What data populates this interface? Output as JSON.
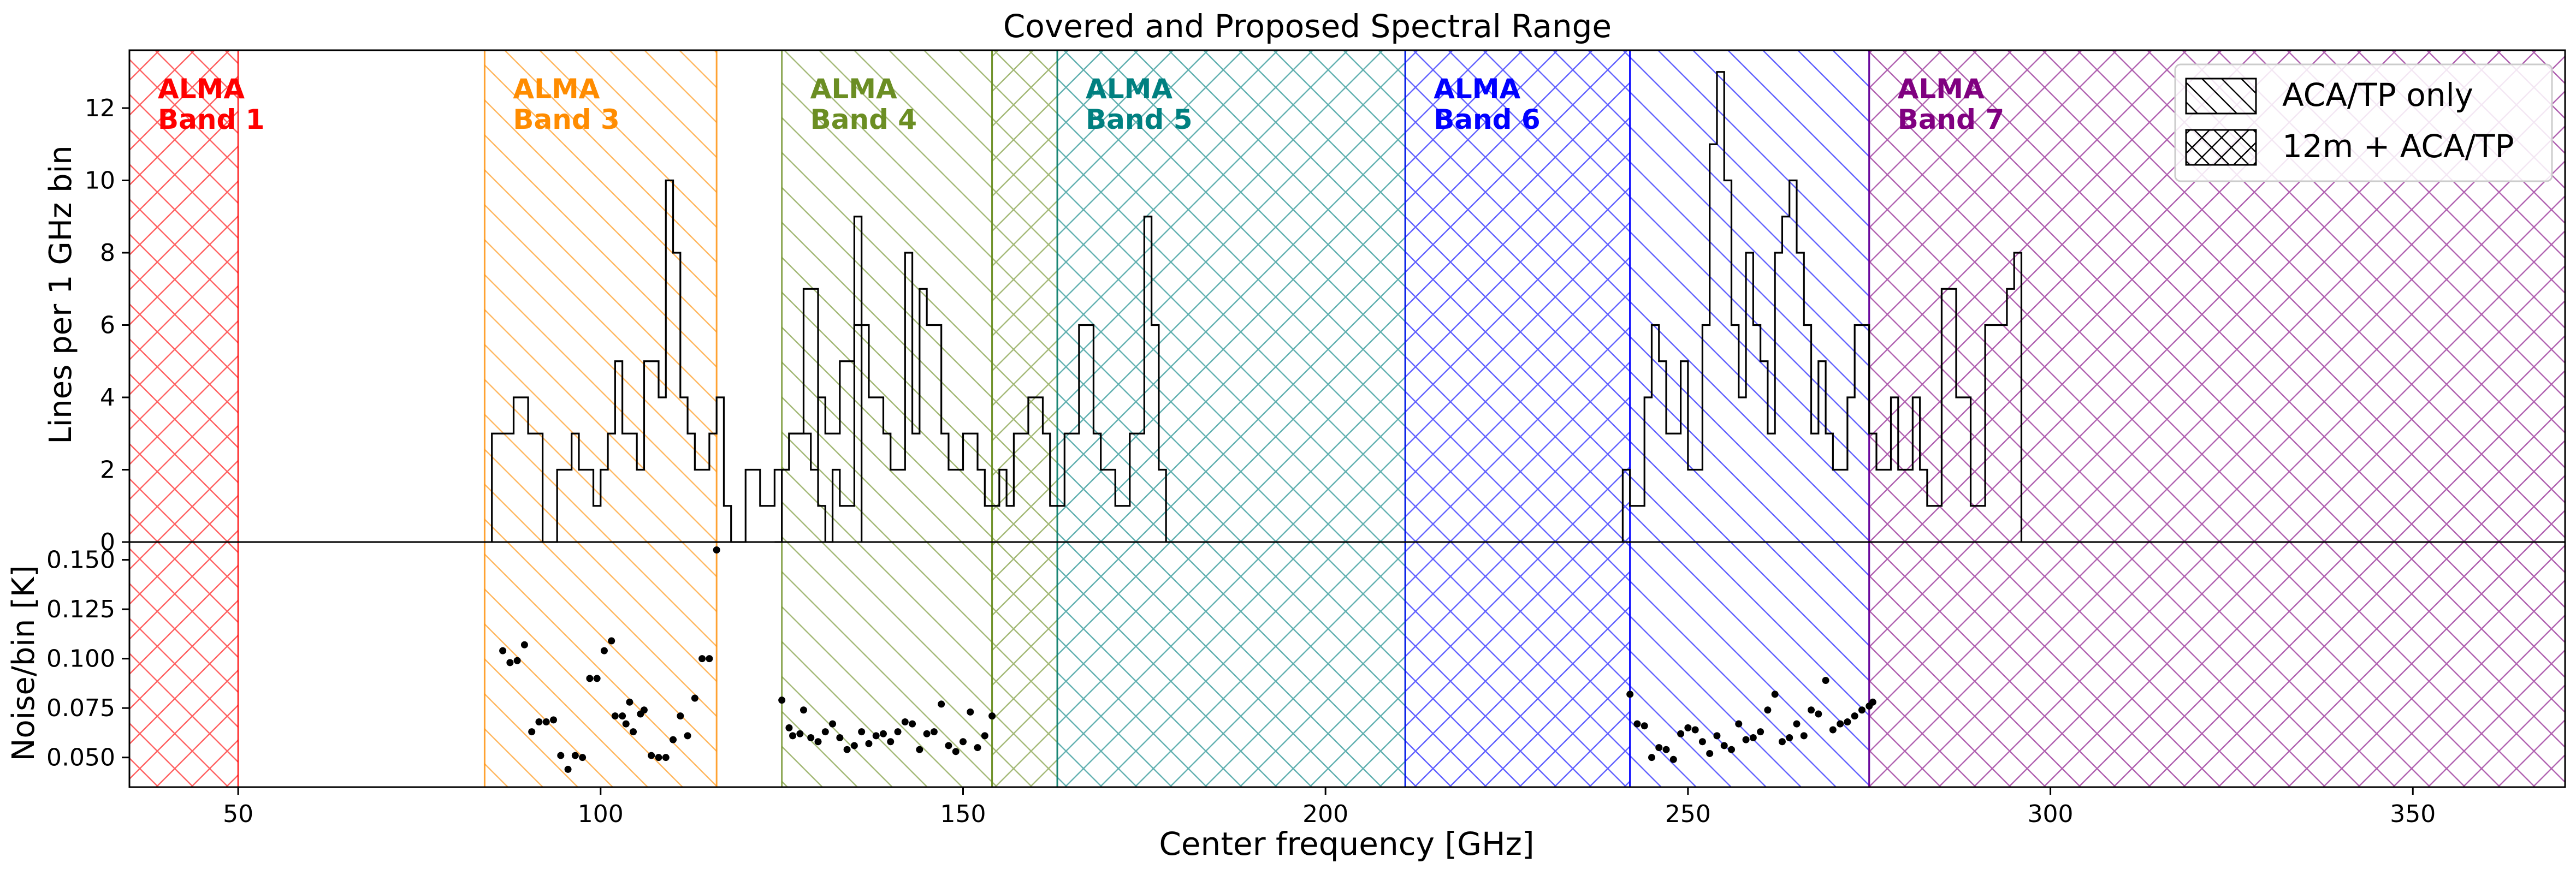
{
  "chart_data": {
    "title": "Covered and Proposed Spectral Range",
    "xlabel": "Center frequency [GHz]",
    "xlim": [
      35,
      371
    ],
    "xticks": [
      50,
      100,
      150,
      200,
      250,
      300,
      350
    ],
    "top_panel": {
      "type": "histogram-step",
      "ylabel": "Lines per 1 GHz bin",
      "ylim": [
        0,
        13.6
      ],
      "yticks": [
        0,
        2,
        4,
        6,
        8,
        10,
        12
      ],
      "bin_width": 1,
      "segments": [
        {
          "start": 85,
          "values": [
            3,
            3,
            3,
            4,
            4,
            3,
            3,
            0,
            0,
            2,
            2,
            3,
            2,
            2,
            1,
            2,
            3,
            5,
            3,
            3,
            2,
            5,
            5,
            4,
            10,
            8,
            4,
            3,
            2,
            2,
            3,
            4,
            1,
            0,
            0,
            2,
            2,
            1,
            1,
            2,
            2,
            3,
            3,
            7,
            7,
            1,
            0,
            2,
            1,
            1,
            6
          ]
        },
        {
          "start": 124,
          "values": [
            0,
            2,
            3,
            3,
            3,
            2,
            4,
            3,
            3,
            5,
            5,
            9,
            6,
            4,
            4,
            3,
            2,
            2,
            8,
            3,
            7,
            6,
            6,
            3,
            2,
            2,
            3,
            3,
            2,
            1,
            1,
            2,
            1,
            3,
            3,
            4,
            4,
            3,
            1,
            1,
            3,
            3,
            6,
            6,
            3,
            2,
            2,
            1,
            1,
            3,
            3,
            9,
            6,
            2
          ]
        },
        {
          "start": 241,
          "values": [
            2,
            1,
            1,
            4,
            6,
            5,
            3,
            3,
            5,
            2,
            2,
            6,
            11,
            13,
            10,
            6,
            4,
            8,
            6,
            5,
            3,
            8,
            9,
            10,
            8,
            6,
            3,
            5,
            3,
            2,
            2,
            4,
            6,
            6,
            3,
            2,
            2,
            4,
            2,
            2,
            4,
            2,
            1,
            1,
            7,
            7,
            4,
            4,
            1,
            1,
            6,
            6,
            6,
            7,
            8
          ]
        }
      ]
    },
    "bottom_panel": {
      "type": "scatter",
      "ylabel": "Noise/bin [K]",
      "ylim": [
        0.035,
        0.159
      ],
      "yticks": [
        0.05,
        0.075,
        0.1,
        0.125,
        0.15
      ],
      "ytick_labels": [
        "0.050",
        "0.075",
        "0.100",
        "0.125",
        "0.150"
      ],
      "points": [
        [
          86.5,
          0.104
        ],
        [
          87.5,
          0.098
        ],
        [
          88.5,
          0.099
        ],
        [
          89.5,
          0.107
        ],
        [
          90.5,
          0.063
        ],
        [
          91.5,
          0.068
        ],
        [
          92.5,
          0.068
        ],
        [
          93.5,
          0.069
        ],
        [
          94.5,
          0.051
        ],
        [
          95.5,
          0.044
        ],
        [
          96.5,
          0.051
        ],
        [
          97.5,
          0.05
        ],
        [
          98.5,
          0.09
        ],
        [
          99.5,
          0.09
        ],
        [
          100.5,
          0.104
        ],
        [
          101.5,
          0.109
        ],
        [
          102,
          0.071
        ],
        [
          103,
          0.071
        ],
        [
          103.5,
          0.067
        ],
        [
          104,
          0.078
        ],
        [
          104.5,
          0.063
        ],
        [
          105.5,
          0.072
        ],
        [
          106,
          0.074
        ],
        [
          107,
          0.051
        ],
        [
          108,
          0.05
        ],
        [
          109,
          0.05
        ],
        [
          110,
          0.059
        ],
        [
          111,
          0.071
        ],
        [
          112,
          0.061
        ],
        [
          113,
          0.08
        ],
        [
          114,
          0.1
        ],
        [
          115,
          0.1
        ],
        [
          116,
          0.155
        ],
        [
          125,
          0.079
        ],
        [
          126,
          0.065
        ],
        [
          126.5,
          0.061
        ],
        [
          127.5,
          0.062
        ],
        [
          128,
          0.074
        ],
        [
          129,
          0.06
        ],
        [
          130,
          0.058
        ],
        [
          131,
          0.063
        ],
        [
          132,
          0.067
        ],
        [
          133,
          0.06
        ],
        [
          134,
          0.054
        ],
        [
          135,
          0.056
        ],
        [
          136,
          0.063
        ],
        [
          137,
          0.057
        ],
        [
          138,
          0.061
        ],
        [
          139,
          0.062
        ],
        [
          140,
          0.058
        ],
        [
          141,
          0.063
        ],
        [
          142,
          0.068
        ],
        [
          143,
          0.067
        ],
        [
          144,
          0.054
        ],
        [
          145,
          0.062
        ],
        [
          146,
          0.063
        ],
        [
          147,
          0.077
        ],
        [
          148,
          0.056
        ],
        [
          149,
          0.053
        ],
        [
          150,
          0.058
        ],
        [
          151,
          0.073
        ],
        [
          152,
          0.055
        ],
        [
          153,
          0.061
        ],
        [
          154,
          0.071
        ],
        [
          242,
          0.082
        ],
        [
          243,
          0.067
        ],
        [
          244,
          0.066
        ],
        [
          245,
          0.05
        ],
        [
          246,
          0.055
        ],
        [
          247,
          0.054
        ],
        [
          248,
          0.049
        ],
        [
          249,
          0.062
        ],
        [
          250,
          0.065
        ],
        [
          251,
          0.064
        ],
        [
          252,
          0.058
        ],
        [
          253,
          0.052
        ],
        [
          254,
          0.061
        ],
        [
          255,
          0.056
        ],
        [
          256,
          0.054
        ],
        [
          257,
          0.067
        ],
        [
          258,
          0.059
        ],
        [
          259,
          0.06
        ],
        [
          260,
          0.063
        ],
        [
          261,
          0.074
        ],
        [
          262,
          0.082
        ],
        [
          263,
          0.058
        ],
        [
          264,
          0.06
        ],
        [
          265,
          0.067
        ],
        [
          266,
          0.061
        ],
        [
          267,
          0.074
        ],
        [
          268,
          0.072
        ],
        [
          269,
          0.089
        ],
        [
          270,
          0.064
        ],
        [
          271,
          0.067
        ],
        [
          272,
          0.068
        ],
        [
          273,
          0.071
        ],
        [
          274,
          0.074
        ],
        [
          275,
          0.076
        ],
        [
          275.5,
          0.078
        ]
      ]
    },
    "bands": [
      {
        "name": "ALMA\nBand 1",
        "line1": "ALMA",
        "line2": "Band 1",
        "color": "#ff0000",
        "regions": [
          {
            "range": [
              35,
              50
            ],
            "hatch": "cross"
          }
        ]
      },
      {
        "name": "ALMA\nBand 3",
        "line1": "ALMA",
        "line2": "Band 3",
        "color": "#ff8c00",
        "regions": [
          {
            "range": [
              84,
              116
            ],
            "hatch": "single"
          }
        ]
      },
      {
        "name": "ALMA\nBand 4",
        "line1": "ALMA",
        "line2": "Band 4",
        "color": "#6b8e23",
        "regions": [
          {
            "range": [
              125,
              154
            ],
            "hatch": "single"
          },
          {
            "range": [
              154,
              163
            ],
            "hatch": "cross"
          }
        ]
      },
      {
        "name": "ALMA\nBand 5",
        "line1": "ALMA",
        "line2": "Band 5",
        "color": "#008080",
        "regions": [
          {
            "range": [
              163,
              211
            ],
            "hatch": "cross"
          }
        ]
      },
      {
        "name": "ALMA\nBand 6",
        "line1": "ALMA",
        "line2": "Band 6",
        "color": "#0000ff",
        "regions": [
          {
            "range": [
              211,
              242
            ],
            "hatch": "cross"
          },
          {
            "range": [
              242,
              275
            ],
            "hatch": "single"
          }
        ]
      },
      {
        "name": "ALMA\nBand 7",
        "line1": "ALMA",
        "line2": "Band 7",
        "color": "#800080",
        "regions": [
          {
            "range": [
              275,
              371
            ],
            "hatch": "cross"
          }
        ]
      }
    ],
    "legend": {
      "placement": "top-right",
      "entries": [
        {
          "label": "ACA/TP only",
          "hatch": "single"
        },
        {
          "label": "12m + ACA/TP",
          "hatch": "cross"
        }
      ]
    },
    "grid": false
  }
}
